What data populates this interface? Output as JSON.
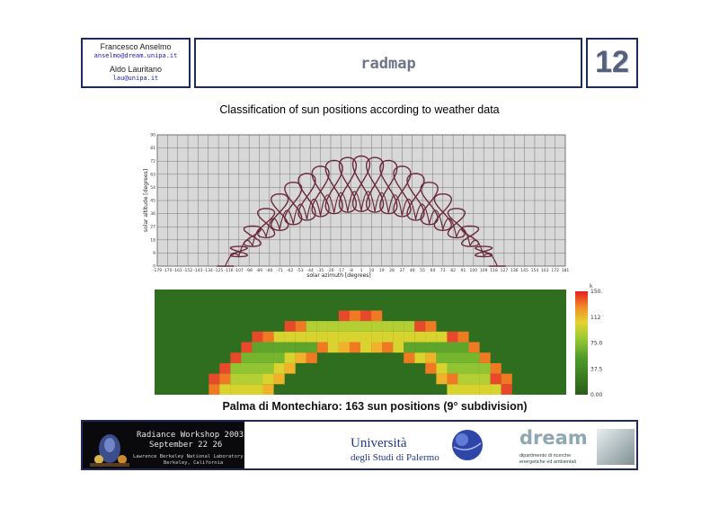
{
  "header": {
    "authors": [
      {
        "name": "Francesco Anselmo",
        "email": "anselmo@dream.unipa.it"
      },
      {
        "name": "Aldo Lauritano",
        "email": "lau@unipa.it"
      }
    ],
    "title": "radmap",
    "slide_number": "12"
  },
  "chart_title": "Classification of sun positions according to weather data",
  "heatmap_caption": "Palma di Montechiaro: 163 sun positions (9° subdivision)",
  "chart_data": [
    {
      "type": "line",
      "title": "Classification of sun positions according to weather data",
      "xlabel": "solar azimuth [degrees]",
      "ylabel": "solar altitude [degrees]",
      "xlim": [
        -180,
        180
      ],
      "ylim": [
        0,
        90
      ],
      "grid": true,
      "x_ticks": [
        "-179",
        "-170",
        "-161",
        "-152",
        "-143",
        "-134",
        "-125",
        "-116",
        "-107",
        "-98",
        "-89",
        "-80",
        "-71",
        "-62",
        "-53",
        "-44",
        "-35",
        "-26",
        "-17",
        "-8",
        "1",
        "10",
        "19",
        "28",
        "37",
        "46",
        "55",
        "64",
        "73",
        "82",
        "91",
        "100",
        "109",
        "118",
        "127",
        "136",
        "145",
        "154",
        "163",
        "172",
        "181"
      ],
      "y_ticks": [
        "0",
        "9",
        "18",
        "27",
        "36",
        "45",
        "54",
        "63",
        "72",
        "81",
        "90"
      ],
      "series": [
        {
          "color": "#6b2a3c",
          "description_points_x": [
            -120,
            -108,
            -96,
            -84,
            -72,
            -60,
            -48,
            -36,
            -24,
            -12,
            0,
            12,
            24,
            36,
            48,
            60,
            72,
            84,
            96,
            108,
            120
          ],
          "peak_altitude": [
            0,
            14,
            28,
            40,
            50,
            58,
            64,
            69,
            73,
            75,
            76,
            75,
            73,
            69,
            64,
            58,
            50,
            40,
            28,
            14,
            0
          ]
        }
      ]
    },
    {
      "type": "heatmap",
      "colorbar_ticks": [
        "0.00",
        "37.5",
        "75.0",
        "112",
        "150."
      ],
      "colorbar_label": "k"
    }
  ],
  "footer": {
    "workshop": {
      "line1": "Radiance Workshop 2003",
      "line2": "September 22 26",
      "line3": "Lawrence Berkeley National Laboratory",
      "line4": "Berkeley, California"
    },
    "university": {
      "line1": "Università",
      "line2": "degli Studi di Palermo"
    },
    "dream": {
      "name": "dream",
      "sub1": "dipartimento di ricerche",
      "sub2": "energetiche ed ambientali"
    }
  },
  "colors": {
    "border": "#1f2a5a",
    "plot_bg": "#d8d8d8",
    "curve": "#6b2a3c",
    "heat_bg": "#2f6e1e"
  }
}
